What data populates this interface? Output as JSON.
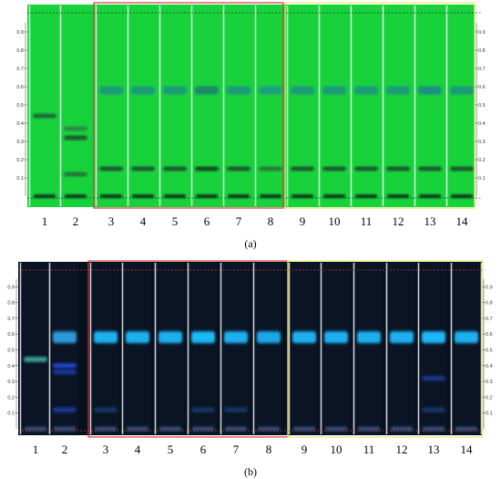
{
  "captions": {
    "a": "(a)",
    "b": "(b)"
  },
  "rf_ticks": [
    "0.1",
    "0.2",
    "0.3",
    "0.4",
    "0.5",
    "0.6",
    "0.7",
    "0.8",
    "0.9"
  ],
  "rf_values": [
    0.1,
    0.2,
    0.3,
    0.4,
    0.5,
    0.6,
    0.7,
    0.8,
    0.9
  ],
  "lanes": [
    "1",
    "2",
    "3",
    "4",
    "5",
    "6",
    "7",
    "8",
    "9",
    "10",
    "11",
    "12",
    "13",
    "14"
  ],
  "colors": {
    "plate_a": "#18d23c",
    "plate_b": "#07101c",
    "box_red": "#d33a3a",
    "box_yellow": "#e8e86a",
    "lane_divider": "#e8f0f0"
  },
  "panel_a": {
    "bands": [
      {
        "lane": 1,
        "rf": 0.44,
        "color": "#1c6a3a"
      },
      {
        "lane": 2,
        "rf": 0.37,
        "color": "#2a8a4a"
      },
      {
        "lane": 2,
        "rf": 0.32,
        "color": "#1c5a2e"
      },
      {
        "lane": 2,
        "rf": 0.12,
        "color": "#247a3a"
      },
      {
        "lane": 3,
        "rf": 0.58,
        "color": "#1a9a7a"
      },
      {
        "lane": 4,
        "rf": 0.58,
        "color": "#1a9a7a"
      },
      {
        "lane": 5,
        "rf": 0.58,
        "color": "#1a9a7a"
      },
      {
        "lane": 6,
        "rf": 0.58,
        "color": "#1a8a6a"
      },
      {
        "lane": 7,
        "rf": 0.58,
        "color": "#1a9a7a"
      },
      {
        "lane": 8,
        "rf": 0.58,
        "color": "#1aa080"
      },
      {
        "lane": 9,
        "rf": 0.58,
        "color": "#1a9a7a"
      },
      {
        "lane": 10,
        "rf": 0.58,
        "color": "#1a9a7a"
      },
      {
        "lane": 11,
        "rf": 0.58,
        "color": "#1a9a7a"
      },
      {
        "lane": 12,
        "rf": 0.58,
        "color": "#1a9a7a"
      },
      {
        "lane": 13,
        "rf": 0.58,
        "color": "#1a9080"
      },
      {
        "lane": 14,
        "rf": 0.58,
        "color": "#1a9a7a"
      },
      {
        "lane": 3,
        "rf": 0.15,
        "color": "#1e5a2e"
      },
      {
        "lane": 4,
        "rf": 0.15,
        "color": "#1e5a2e"
      },
      {
        "lane": 5,
        "rf": 0.15,
        "color": "#1e5a2e"
      },
      {
        "lane": 6,
        "rf": 0.15,
        "color": "#154a24"
      },
      {
        "lane": 7,
        "rf": 0.15,
        "color": "#1e5a2e"
      },
      {
        "lane": 8,
        "rf": 0.15,
        "color": "#2a7a3e"
      },
      {
        "lane": 9,
        "rf": 0.15,
        "color": "#1e5a2e"
      },
      {
        "lane": 10,
        "rf": 0.15,
        "color": "#1e5a2e"
      },
      {
        "lane": 11,
        "rf": 0.15,
        "color": "#1e5a2e"
      },
      {
        "lane": 12,
        "rf": 0.15,
        "color": "#1e5a2e"
      },
      {
        "lane": 13,
        "rf": 0.15,
        "color": "#1e5a2e"
      },
      {
        "lane": 14,
        "rf": 0.15,
        "color": "#1e5a2e"
      }
    ]
  },
  "panel_b": {
    "bands": [
      {
        "lane": 1,
        "rf": 0.44,
        "color": "#3fb0a0"
      },
      {
        "lane": 2,
        "rf": 0.58,
        "color": "#2a9ad8"
      },
      {
        "lane": 2,
        "rf": 0.4,
        "color": "#2448d8"
      },
      {
        "lane": 2,
        "rf": 0.36,
        "color": "#1a3aa8"
      },
      {
        "lane": 2,
        "rf": 0.12,
        "color": "#1a3aa0"
      },
      {
        "lane": 3,
        "rf": 0.58,
        "color": "#1ab0f0"
      },
      {
        "lane": 4,
        "rf": 0.58,
        "color": "#1ab0f0"
      },
      {
        "lane": 5,
        "rf": 0.58,
        "color": "#1ab0f0"
      },
      {
        "lane": 6,
        "rf": 0.58,
        "color": "#1ab8f8"
      },
      {
        "lane": 7,
        "rf": 0.58,
        "color": "#1ab0f0"
      },
      {
        "lane": 8,
        "rf": 0.58,
        "color": "#1aa8e8"
      },
      {
        "lane": 9,
        "rf": 0.58,
        "color": "#1ab0f0"
      },
      {
        "lane": 10,
        "rf": 0.58,
        "color": "#1ab0f0"
      },
      {
        "lane": 11,
        "rf": 0.58,
        "color": "#1ab0f0"
      },
      {
        "lane": 12,
        "rf": 0.58,
        "color": "#1ab0f0"
      },
      {
        "lane": 13,
        "rf": 0.58,
        "color": "#1ab8f8"
      },
      {
        "lane": 14,
        "rf": 0.58,
        "color": "#1ab0f0"
      },
      {
        "lane": 13,
        "rf": 0.32,
        "color": "#1a3a8a"
      },
      {
        "lane": 3,
        "rf": 0.12,
        "color": "#163a6a"
      },
      {
        "lane": 6,
        "rf": 0.12,
        "color": "#163a6a"
      },
      {
        "lane": 7,
        "rf": 0.12,
        "color": "#163a6a"
      },
      {
        "lane": 13,
        "rf": 0.12,
        "color": "#163a6a"
      }
    ]
  }
}
